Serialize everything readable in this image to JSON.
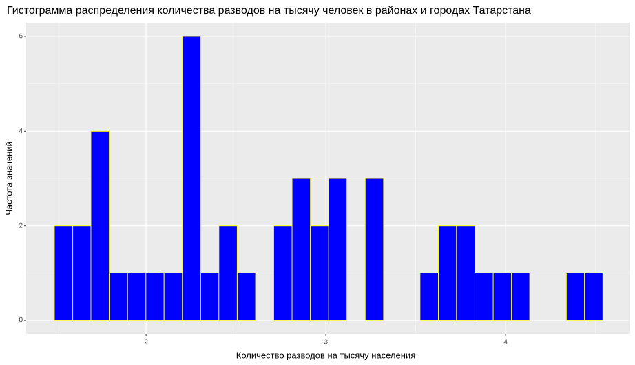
{
  "chart_data": {
    "type": "histogram",
    "title": "Гистограмма распределения количества разводов на тысячу человек в районах и городах Татарстана",
    "x_label": "Количество разводов на тысячу населения",
    "y_label": "Частота значений",
    "bins": [
      1.49,
      1.592,
      1.693,
      1.795,
      1.897,
      1.999,
      2.1,
      2.202,
      2.304,
      2.405,
      2.507,
      2.609,
      2.71,
      2.812,
      2.914,
      3.016,
      3.117,
      3.219,
      3.321,
      3.422,
      3.524,
      3.626,
      3.727,
      3.829,
      3.931,
      4.033,
      4.134,
      4.236,
      4.338,
      4.439,
      4.541
    ],
    "values": [
      2,
      2,
      4,
      1,
      1,
      1,
      1,
      6,
      1,
      2,
      1,
      0,
      2,
      3,
      2,
      3,
      0,
      3,
      0,
      0,
      1,
      2,
      2,
      1,
      1,
      1,
      0,
      0,
      1,
      1
    ],
    "color": "#0000ff",
    "edge_color": "#ffff00",
    "xlim": [
      1.333,
      4.693
    ],
    "xticks": [
      2,
      3,
      4
    ],
    "ylim": [
      -0.29,
      6.29
    ],
    "yticks": [
      0,
      2,
      4,
      6
    ],
    "grid": true
  }
}
